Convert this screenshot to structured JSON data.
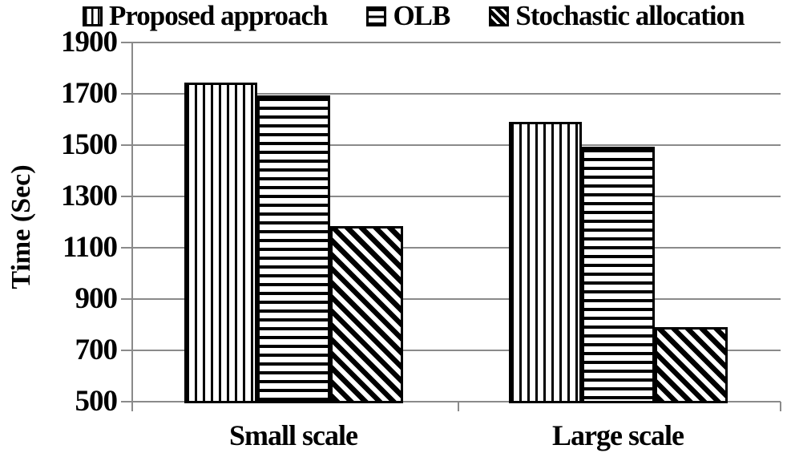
{
  "chart_data": {
    "type": "bar",
    "categories": [
      "Small scale",
      "Large scale"
    ],
    "series": [
      {
        "name": "Proposed approach",
        "pattern": "vertical-stripes",
        "values": [
          1745,
          1590
        ]
      },
      {
        "name": "OLB",
        "pattern": "horizontal-stripes",
        "values": [
          1695,
          1495
        ]
      },
      {
        "name": "Stochastic allocation",
        "pattern": "diagonal-stripes",
        "values": [
          1185,
          790
        ]
      }
    ],
    "title": "",
    "xlabel": "",
    "ylabel": "Time (Sec)",
    "ylim": [
      500,
      1900
    ],
    "yticks": [
      1900,
      1700,
      1500,
      1300,
      1100,
      900,
      700,
      500
    ],
    "grid": true,
    "legend_position": "top"
  },
  "colors": {
    "bar_outline": "#000000",
    "bar_fill": "#ffffff",
    "gridline": "#8a8a8a",
    "text": "#000000",
    "background": "#ffffff"
  }
}
